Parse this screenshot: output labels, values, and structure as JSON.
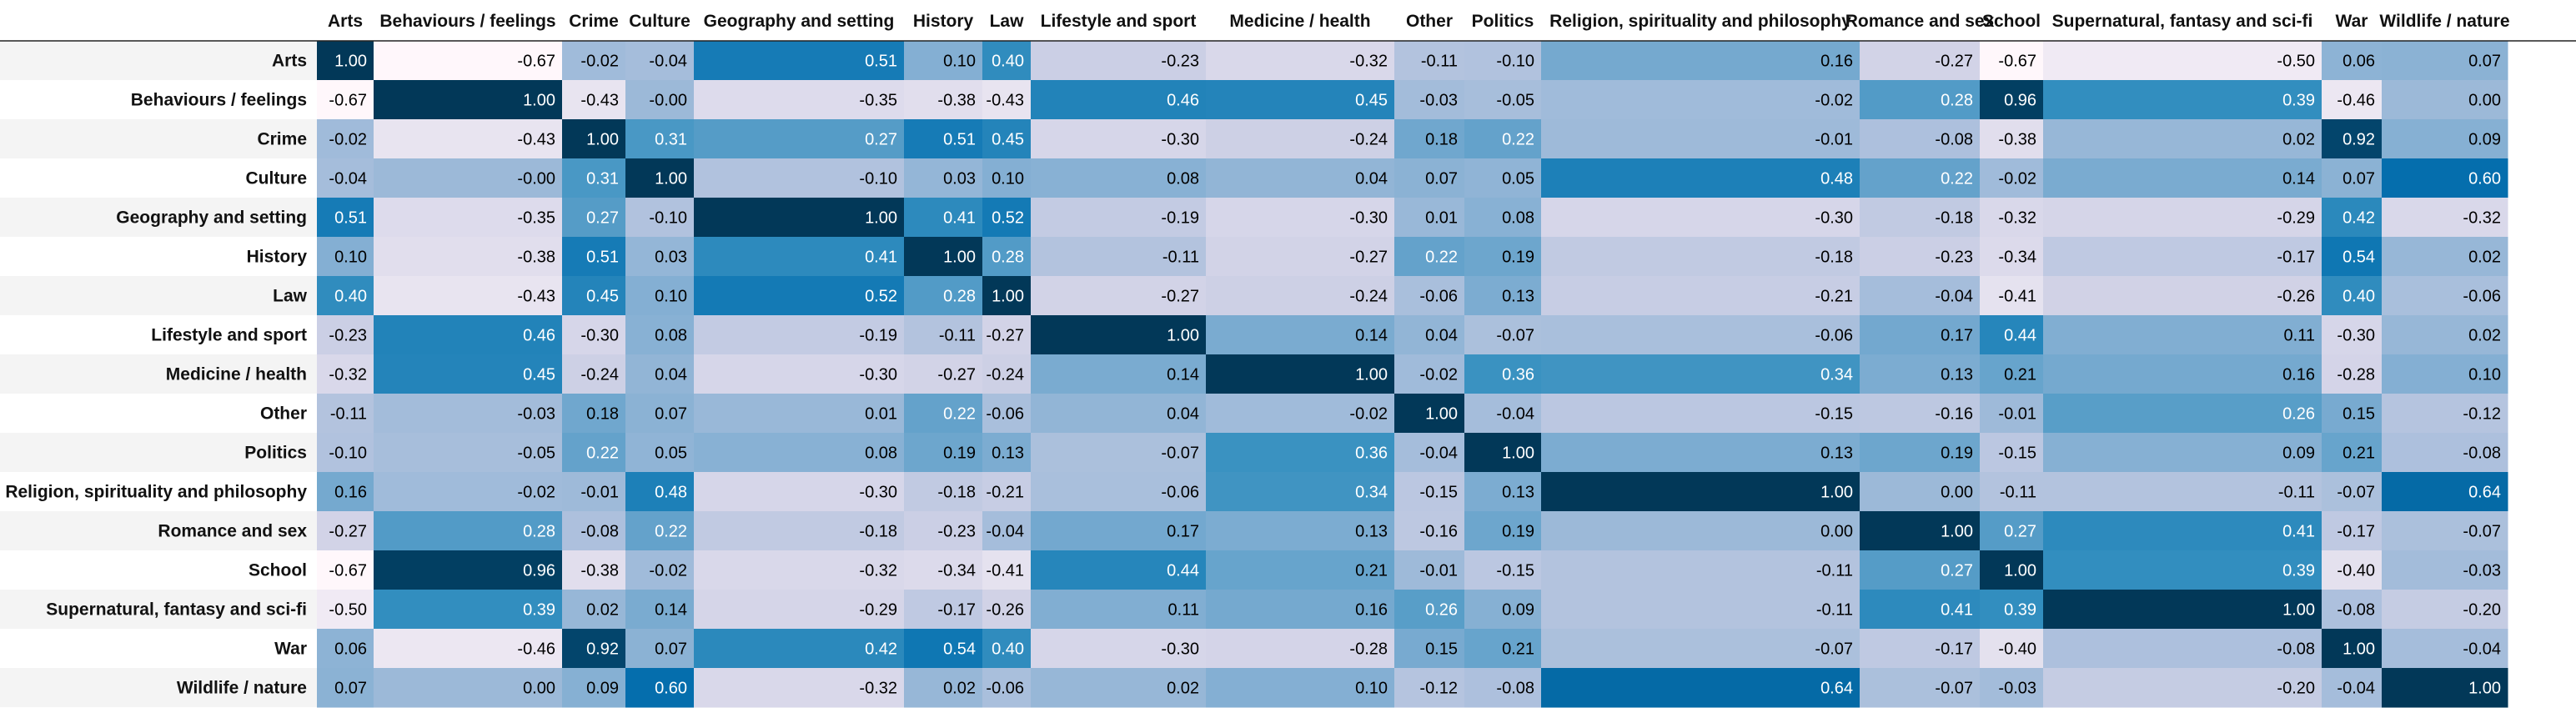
{
  "chart_data": {
    "type": "heatmap",
    "title": "",
    "xlabel": "",
    "ylabel": "",
    "color_range": [
      -0.67,
      1.0
    ],
    "colors": {
      "low": "#fff7fb",
      "high": "#023858",
      "dark_text": "#000000",
      "light_text": "#ffffff"
    },
    "legend": "none",
    "categories": [
      "Arts",
      "Behaviours / feelings",
      "Crime",
      "Culture",
      "Geography and setting",
      "History",
      "Law",
      "Lifestyle and sport",
      "Medicine / health",
      "Other",
      "Politics",
      "Religion, spirituality and philosophy",
      "Romance and sex",
      "School",
      "Supernatural, fantasy and sci-fi",
      "War",
      "Wildlife / nature"
    ],
    "values": [
      [
        "1.00",
        "-0.67",
        "-0.02",
        "-0.04",
        "0.51",
        "0.10",
        "0.40",
        "-0.23",
        "-0.32",
        "-0.11",
        "-0.10",
        "0.16",
        "-0.27",
        "-0.67",
        "-0.50",
        "0.06",
        "0.07"
      ],
      [
        "-0.67",
        "1.00",
        "-0.43",
        "-0.00",
        "-0.35",
        "-0.38",
        "-0.43",
        "0.46",
        "0.45",
        "-0.03",
        "-0.05",
        "-0.02",
        "0.28",
        "0.96",
        "0.39",
        "-0.46",
        "0.00"
      ],
      [
        "-0.02",
        "-0.43",
        "1.00",
        "0.31",
        "0.27",
        "0.51",
        "0.45",
        "-0.30",
        "-0.24",
        "0.18",
        "0.22",
        "-0.01",
        "-0.08",
        "-0.38",
        "0.02",
        "0.92",
        "0.09"
      ],
      [
        "-0.04",
        "-0.00",
        "0.31",
        "1.00",
        "-0.10",
        "0.03",
        "0.10",
        "0.08",
        "0.04",
        "0.07",
        "0.05",
        "0.48",
        "0.22",
        "-0.02",
        "0.14",
        "0.07",
        "0.60"
      ],
      [
        "0.51",
        "-0.35",
        "0.27",
        "-0.10",
        "1.00",
        "0.41",
        "0.52",
        "-0.19",
        "-0.30",
        "0.01",
        "0.08",
        "-0.30",
        "-0.18",
        "-0.32",
        "-0.29",
        "0.42",
        "-0.32"
      ],
      [
        "0.10",
        "-0.38",
        "0.51",
        "0.03",
        "0.41",
        "1.00",
        "0.28",
        "-0.11",
        "-0.27",
        "0.22",
        "0.19",
        "-0.18",
        "-0.23",
        "-0.34",
        "-0.17",
        "0.54",
        "0.02"
      ],
      [
        "0.40",
        "-0.43",
        "0.45",
        "0.10",
        "0.52",
        "0.28",
        "1.00",
        "-0.27",
        "-0.24",
        "-0.06",
        "0.13",
        "-0.21",
        "-0.04",
        "-0.41",
        "-0.26",
        "0.40",
        "-0.06"
      ],
      [
        "-0.23",
        "0.46",
        "-0.30",
        "0.08",
        "-0.19",
        "-0.11",
        "-0.27",
        "1.00",
        "0.14",
        "0.04",
        "-0.07",
        "-0.06",
        "0.17",
        "0.44",
        "0.11",
        "-0.30",
        "0.02"
      ],
      [
        "-0.32",
        "0.45",
        "-0.24",
        "0.04",
        "-0.30",
        "-0.27",
        "-0.24",
        "0.14",
        "1.00",
        "-0.02",
        "0.36",
        "0.34",
        "0.13",
        "0.21",
        "0.16",
        "-0.28",
        "0.10"
      ],
      [
        "-0.11",
        "-0.03",
        "0.18",
        "0.07",
        "0.01",
        "0.22",
        "-0.06",
        "0.04",
        "-0.02",
        "1.00",
        "-0.04",
        "-0.15",
        "-0.16",
        "-0.01",
        "0.26",
        "0.15",
        "-0.12"
      ],
      [
        "-0.10",
        "-0.05",
        "0.22",
        "0.05",
        "0.08",
        "0.19",
        "0.13",
        "-0.07",
        "0.36",
        "-0.04",
        "1.00",
        "0.13",
        "0.19",
        "-0.15",
        "0.09",
        "0.21",
        "-0.08"
      ],
      [
        "0.16",
        "-0.02",
        "-0.01",
        "0.48",
        "-0.30",
        "-0.18",
        "-0.21",
        "-0.06",
        "0.34",
        "-0.15",
        "0.13",
        "1.00",
        "0.00",
        "-0.11",
        "-0.11",
        "-0.07",
        "0.64"
      ],
      [
        "-0.27",
        "0.28",
        "-0.08",
        "0.22",
        "-0.18",
        "-0.23",
        "-0.04",
        "0.17",
        "0.13",
        "-0.16",
        "0.19",
        "0.00",
        "1.00",
        "0.27",
        "0.41",
        "-0.17",
        "-0.07"
      ],
      [
        "-0.67",
        "0.96",
        "-0.38",
        "-0.02",
        "-0.32",
        "-0.34",
        "-0.41",
        "0.44",
        "0.21",
        "-0.01",
        "-0.15",
        "-0.11",
        "0.27",
        "1.00",
        "0.39",
        "-0.40",
        "-0.03"
      ],
      [
        "-0.50",
        "0.39",
        "0.02",
        "0.14",
        "-0.29",
        "-0.17",
        "-0.26",
        "0.11",
        "0.16",
        "0.26",
        "0.09",
        "-0.11",
        "0.41",
        "0.39",
        "1.00",
        "-0.08",
        "-0.20"
      ],
      [
        "0.06",
        "-0.46",
        "0.92",
        "0.07",
        "0.42",
        "0.54",
        "0.40",
        "-0.30",
        "-0.28",
        "0.15",
        "0.21",
        "-0.07",
        "-0.17",
        "-0.40",
        "-0.08",
        "1.00",
        "-0.04"
      ],
      [
        "0.07",
        "0.00",
        "0.09",
        "0.60",
        "-0.32",
        "0.02",
        "-0.06",
        "0.02",
        "0.10",
        "-0.12",
        "-0.08",
        "0.64",
        "-0.07",
        "-0.03",
        "-0.20",
        "-0.04",
        "1.00"
      ]
    ]
  }
}
